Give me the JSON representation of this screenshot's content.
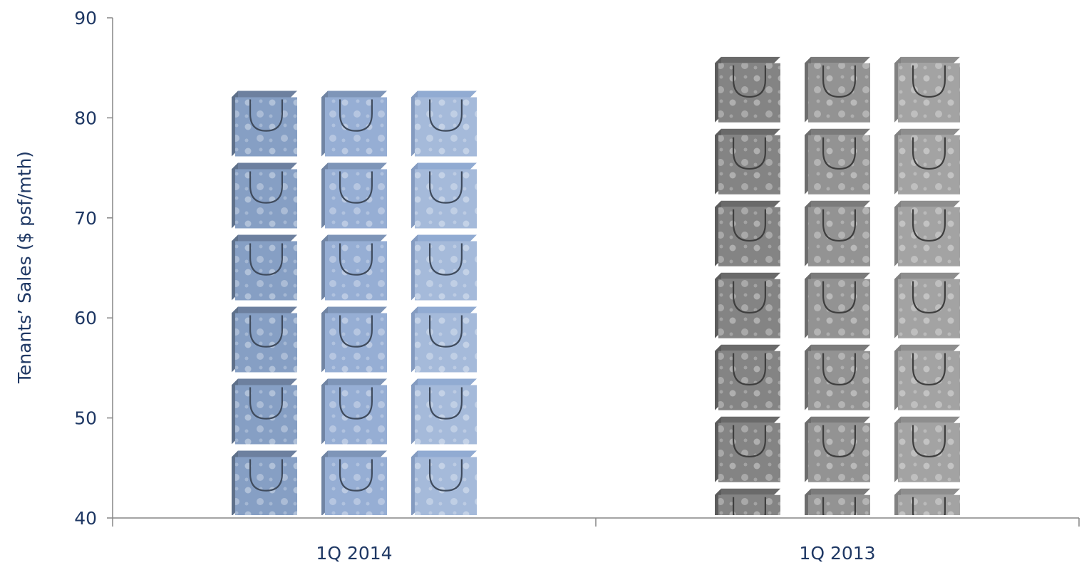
{
  "chart_data": {
    "type": "bar",
    "bar_style": "pictograph",
    "icon": "shopping-bag-icon",
    "categories": [
      "1Q 2014",
      "1Q 2013"
    ],
    "values": [
      82.7,
      86.1
    ],
    "bar_colors": [
      "#8fa9d1",
      "#8c8c8c"
    ],
    "xlabel": "",
    "ylabel": "Tenants’ Sales ($ psf/mth)",
    "ylim": [
      40,
      90
    ],
    "yticks": [
      40,
      50,
      60,
      70,
      80,
      90
    ],
    "grid": false,
    "legend": "none"
  },
  "colors": {
    "axis": "#868686",
    "text": "#1f3864"
  }
}
